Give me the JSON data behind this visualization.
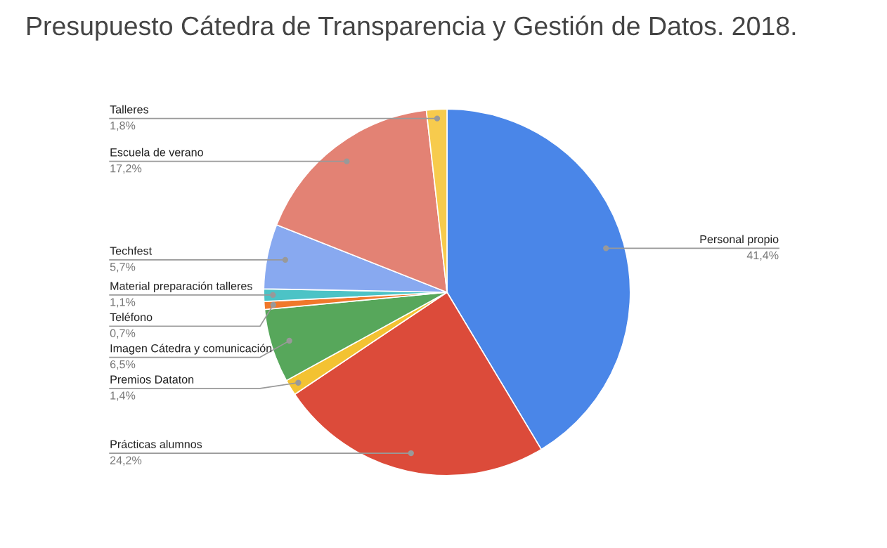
{
  "chart_data": {
    "type": "pie",
    "title": "Presupuesto Cátedra de Transparencia y Gestión de Datos. 2018.",
    "categories": [
      "Personal propio",
      "Prácticas alumnos",
      "Premios Dataton",
      "Imagen Cátedra y comunicación",
      "Teléfono",
      "Material preparación talleres",
      "Techfest",
      "Escuela de verano",
      "Talleres"
    ],
    "values": [
      41.4,
      24.2,
      1.4,
      6.5,
      0.7,
      1.1,
      5.7,
      17.2,
      1.8
    ],
    "value_labels": [
      "41,4%",
      "24,2%",
      "1,4%",
      "6,5%",
      "0,7%",
      "1,1%",
      "5,7%",
      "17,2%",
      "1,8%"
    ],
    "colors": [
      "#4a86e8",
      "#dc4b3a",
      "#f3c232",
      "#57a75b",
      "#f0782b",
      "#4cc3c6",
      "#88a9f0",
      "#e38274",
      "#f7cb4d"
    ],
    "legend": false
  }
}
